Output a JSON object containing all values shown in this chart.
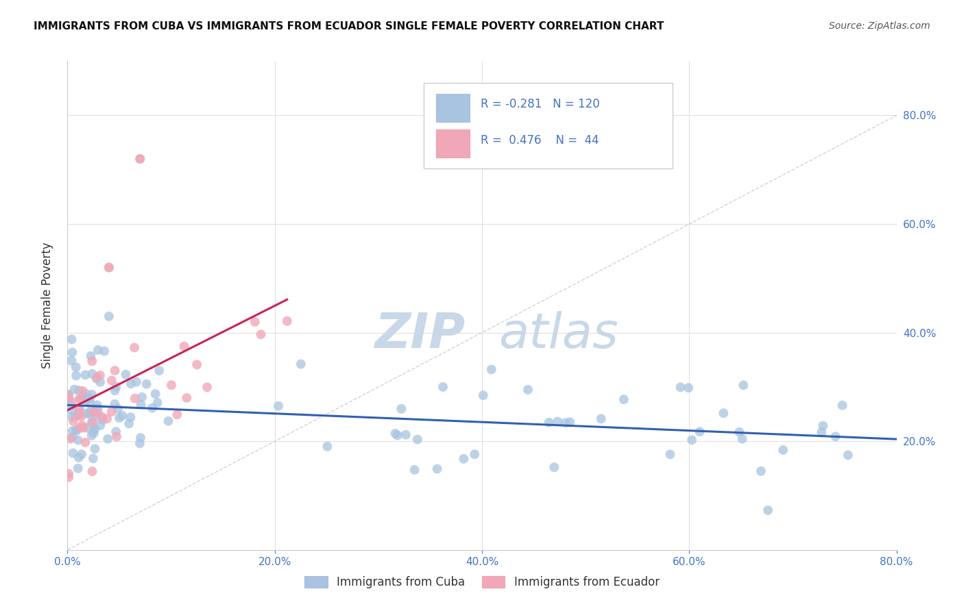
{
  "title": "IMMIGRANTS FROM CUBA VS IMMIGRANTS FROM ECUADOR SINGLE FEMALE POVERTY CORRELATION CHART",
  "source": "Source: ZipAtlas.com",
  "ylabel": "Single Female Poverty",
  "xlim": [
    0.0,
    0.8
  ],
  "ylim": [
    0.0,
    0.9
  ],
  "xtick_vals": [
    0.0,
    0.2,
    0.4,
    0.6,
    0.8
  ],
  "ytick_vals": [
    0.2,
    0.4,
    0.6,
    0.8
  ],
  "xticklabels": [
    "0.0%",
    "20.0%",
    "40.0%",
    "60.0%",
    "80.0%"
  ],
  "yticklabels": [
    "20.0%",
    "40.0%",
    "60.0%",
    "80.0%"
  ],
  "background_color": "#ffffff",
  "grid_color": "#e0e0e0",
  "watermark_zip": "ZIP",
  "watermark_atlas": "atlas",
  "watermark_color": "#c8d8e8",
  "cuba_color": "#a8c4e0",
  "ecuador_color": "#f0a8b8",
  "cuba_line_color": "#3060b0",
  "ecuador_line_color": "#cc2255",
  "diagonal_color": "#c8c8c8",
  "legend_color": "#4472c4",
  "R_cuba": -0.281,
  "N_cuba": 120,
  "R_ecuador": 0.476,
  "N_ecuador": 44
}
